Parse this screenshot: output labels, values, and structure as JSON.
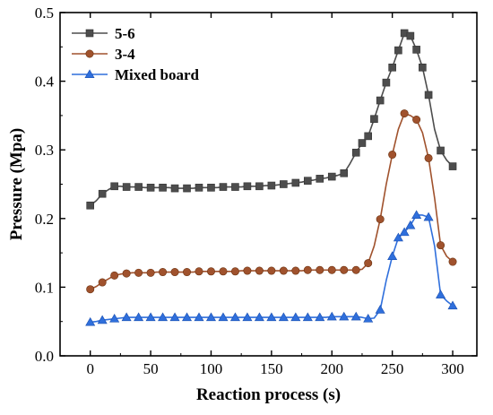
{
  "chart_data": {
    "type": "line",
    "title": "",
    "xlabel": "Reaction process (s)",
    "ylabel": "Pressure (Mpa)",
    "xlim": [
      -25,
      320
    ],
    "ylim": [
      0,
      0.5
    ],
    "xticks": [
      0,
      50,
      100,
      150,
      200,
      250,
      300
    ],
    "yticks": [
      0.0,
      0.1,
      0.2,
      0.3,
      0.4,
      0.5
    ],
    "xtick_labels": [
      "0",
      "50",
      "100",
      "150",
      "200",
      "250",
      "300"
    ],
    "ytick_labels": [
      "0.0",
      "0.1",
      "0.2",
      "0.3",
      "0.4",
      "0.5"
    ],
    "grid": false,
    "legend_position": "top-left",
    "series": [
      {
        "name": "5-6",
        "color": "#4d4d4d",
        "marker": "square",
        "x": [
          0,
          5,
          10,
          15,
          20,
          25,
          30,
          35,
          40,
          45,
          50,
          55,
          60,
          65,
          70,
          75,
          80,
          85,
          90,
          95,
          100,
          105,
          110,
          115,
          120,
          125,
          130,
          135,
          140,
          145,
          150,
          155,
          160,
          165,
          170,
          175,
          180,
          185,
          190,
          195,
          200,
          205,
          210,
          215,
          220,
          225,
          230,
          235,
          240,
          245,
          250,
          255,
          260,
          265,
          270,
          275,
          280,
          285,
          290,
          295,
          300
        ],
        "y": [
          0.219,
          0.226,
          0.236,
          0.242,
          0.247,
          0.247,
          0.246,
          0.246,
          0.246,
          0.245,
          0.245,
          0.245,
          0.245,
          0.245,
          0.244,
          0.244,
          0.244,
          0.244,
          0.245,
          0.245,
          0.245,
          0.245,
          0.246,
          0.246,
          0.246,
          0.246,
          0.247,
          0.247,
          0.247,
          0.248,
          0.248,
          0.249,
          0.25,
          0.251,
          0.252,
          0.253,
          0.255,
          0.256,
          0.258,
          0.259,
          0.261,
          0.263,
          0.266,
          0.28,
          0.296,
          0.31,
          0.32,
          0.345,
          0.372,
          0.398,
          0.42,
          0.445,
          0.47,
          0.466,
          0.446,
          0.42,
          0.38,
          0.33,
          0.299,
          0.285,
          0.276
        ],
        "markers_x": [
          0,
          10,
          20,
          30,
          40,
          50,
          60,
          70,
          80,
          90,
          100,
          110,
          120,
          130,
          140,
          150,
          160,
          170,
          180,
          190,
          200,
          210,
          220,
          225,
          230,
          235,
          240,
          245,
          250,
          255,
          260,
          265,
          270,
          275,
          280,
          290,
          300
        ]
      },
      {
        "name": "3-4",
        "color": "#a0522d",
        "marker": "circle",
        "x": [
          0,
          5,
          10,
          15,
          20,
          25,
          30,
          35,
          40,
          45,
          50,
          55,
          60,
          65,
          70,
          75,
          80,
          85,
          90,
          95,
          100,
          105,
          110,
          115,
          120,
          125,
          130,
          135,
          140,
          145,
          150,
          155,
          160,
          165,
          170,
          175,
          180,
          185,
          190,
          195,
          200,
          205,
          210,
          215,
          220,
          225,
          230,
          235,
          240,
          245,
          250,
          255,
          260,
          265,
          270,
          275,
          280,
          285,
          290,
          295,
          300
        ],
        "y": [
          0.097,
          0.101,
          0.107,
          0.112,
          0.117,
          0.119,
          0.12,
          0.121,
          0.121,
          0.121,
          0.121,
          0.122,
          0.122,
          0.122,
          0.122,
          0.122,
          0.122,
          0.122,
          0.123,
          0.123,
          0.123,
          0.123,
          0.123,
          0.123,
          0.123,
          0.124,
          0.124,
          0.124,
          0.124,
          0.124,
          0.124,
          0.124,
          0.124,
          0.124,
          0.124,
          0.124,
          0.125,
          0.125,
          0.125,
          0.125,
          0.125,
          0.125,
          0.125,
          0.125,
          0.125,
          0.126,
          0.135,
          0.16,
          0.199,
          0.25,
          0.293,
          0.33,
          0.353,
          0.35,
          0.344,
          0.325,
          0.288,
          0.23,
          0.161,
          0.145,
          0.137
        ],
        "markers_x": [
          0,
          10,
          20,
          30,
          40,
          50,
          60,
          70,
          80,
          90,
          100,
          110,
          120,
          130,
          140,
          150,
          160,
          170,
          180,
          190,
          200,
          210,
          220,
          230,
          240,
          250,
          260,
          270,
          280,
          290,
          300
        ]
      },
      {
        "name": "Mixed board",
        "color": "#2f6fdc",
        "marker": "triangle",
        "x": [
          0,
          5,
          10,
          15,
          20,
          25,
          30,
          35,
          40,
          45,
          50,
          55,
          60,
          65,
          70,
          75,
          80,
          85,
          90,
          95,
          100,
          105,
          110,
          115,
          120,
          125,
          130,
          135,
          140,
          145,
          150,
          155,
          160,
          165,
          170,
          175,
          180,
          185,
          190,
          195,
          200,
          205,
          210,
          215,
          220,
          225,
          230,
          235,
          240,
          245,
          250,
          255,
          260,
          265,
          270,
          275,
          280,
          285,
          290,
          295,
          300
        ],
        "y": [
          0.049,
          0.05,
          0.052,
          0.053,
          0.054,
          0.055,
          0.056,
          0.056,
          0.056,
          0.056,
          0.056,
          0.056,
          0.056,
          0.056,
          0.056,
          0.056,
          0.056,
          0.056,
          0.056,
          0.056,
          0.056,
          0.056,
          0.056,
          0.056,
          0.056,
          0.056,
          0.056,
          0.056,
          0.056,
          0.056,
          0.056,
          0.056,
          0.056,
          0.056,
          0.056,
          0.056,
          0.056,
          0.056,
          0.056,
          0.056,
          0.057,
          0.057,
          0.057,
          0.057,
          0.057,
          0.056,
          0.054,
          0.055,
          0.067,
          0.11,
          0.145,
          0.172,
          0.18,
          0.19,
          0.205,
          0.205,
          0.202,
          0.16,
          0.089,
          0.08,
          0.073
        ],
        "markers_x": [
          0,
          10,
          20,
          30,
          40,
          50,
          60,
          70,
          80,
          90,
          100,
          110,
          120,
          130,
          140,
          150,
          160,
          170,
          180,
          190,
          200,
          210,
          220,
          230,
          240,
          250,
          255,
          260,
          265,
          270,
          280,
          290,
          300
        ]
      }
    ]
  }
}
